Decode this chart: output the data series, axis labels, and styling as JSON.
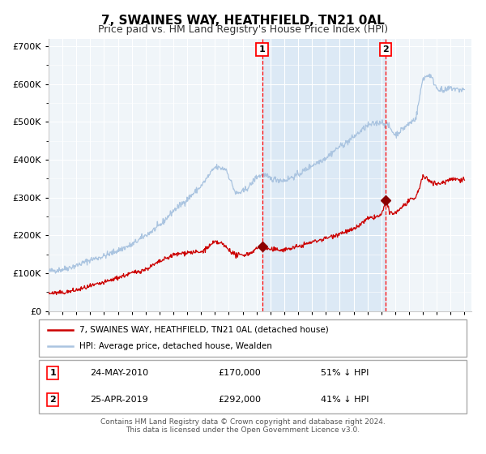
{
  "title": "7, SWAINES WAY, HEATHFIELD, TN21 0AL",
  "subtitle": "Price paid vs. HM Land Registry's House Price Index (HPI)",
  "title_fontsize": 11,
  "subtitle_fontsize": 9,
  "background_color": "#ffffff",
  "hpi_color": "#aac4e0",
  "price_color": "#cc0000",
  "marker1_date": 2010.4,
  "marker2_date": 2019.32,
  "marker1_price": 170000,
  "marker2_price": 292000,
  "shaded_start": 2010.4,
  "shaded_end": 2019.32,
  "ylim": [
    0,
    720000
  ],
  "xlim_start": 1995,
  "xlim_end": 2025.5,
  "legend_label_red": "7, SWAINES WAY, HEATHFIELD, TN21 0AL (detached house)",
  "legend_label_blue": "HPI: Average price, detached house, Wealden",
  "annot1_label": "1",
  "annot1_date": "24-MAY-2010",
  "annot1_price": "£170,000",
  "annot1_pct": "51% ↓ HPI",
  "annot2_label": "2",
  "annot2_date": "25-APR-2019",
  "annot2_price": "£292,000",
  "annot2_pct": "41% ↓ HPI",
  "footer1": "Contains HM Land Registry data © Crown copyright and database right 2024.",
  "footer2": "This data is licensed under the Open Government Licence v3.0.",
  "hpi_years": [
    1995,
    1996,
    1997,
    1998,
    1999,
    2000,
    2001,
    2002,
    2003,
    2004,
    2005,
    2006,
    2007,
    2007.8,
    2008.5,
    2009,
    2009.5,
    2010,
    2010.5,
    2011,
    2012,
    2013,
    2014,
    2015,
    2016,
    2016.5,
    2017,
    2018,
    2018.5,
    2019,
    2019.5,
    2020,
    2020.5,
    2021,
    2021.5,
    2022,
    2022.5,
    2023,
    2023.5,
    2024,
    2024.5
  ],
  "hpi_vals": [
    105000,
    110000,
    120000,
    135000,
    145000,
    160000,
    175000,
    200000,
    225000,
    265000,
    295000,
    330000,
    380000,
    375000,
    310000,
    315000,
    330000,
    355000,
    360000,
    350000,
    345000,
    360000,
    385000,
    405000,
    435000,
    445000,
    460000,
    490000,
    495000,
    500000,
    490000,
    465000,
    480000,
    495000,
    510000,
    615000,
    625000,
    590000,
    580000,
    590000,
    585000
  ],
  "price_years": [
    1995,
    1996,
    1997,
    1998,
    1999,
    2000,
    2001,
    2002,
    2003,
    2004,
    2005,
    2006,
    2007,
    2007.5,
    2008.5,
    2009,
    2009.5,
    2010,
    2010.4,
    2010.8,
    2011,
    2012,
    2013,
    2014,
    2015,
    2016,
    2017,
    2018,
    2018.5,
    2019.0,
    2019.32,
    2019.6,
    2020,
    2020.5,
    2021,
    2021.5,
    2022,
    2022.5,
    2023,
    2023.5,
    2024,
    2024.5
  ],
  "price_vals": [
    47000,
    48000,
    55000,
    65000,
    75000,
    88000,
    100000,
    110000,
    130000,
    148000,
    155000,
    155000,
    182000,
    178000,
    147000,
    148000,
    152000,
    165000,
    170000,
    165000,
    162000,
    162000,
    170000,
    182000,
    192000,
    205000,
    215000,
    243000,
    248000,
    252000,
    292000,
    260000,
    258000,
    275000,
    290000,
    300000,
    355000,
    345000,
    335000,
    340000,
    350000,
    348000
  ]
}
